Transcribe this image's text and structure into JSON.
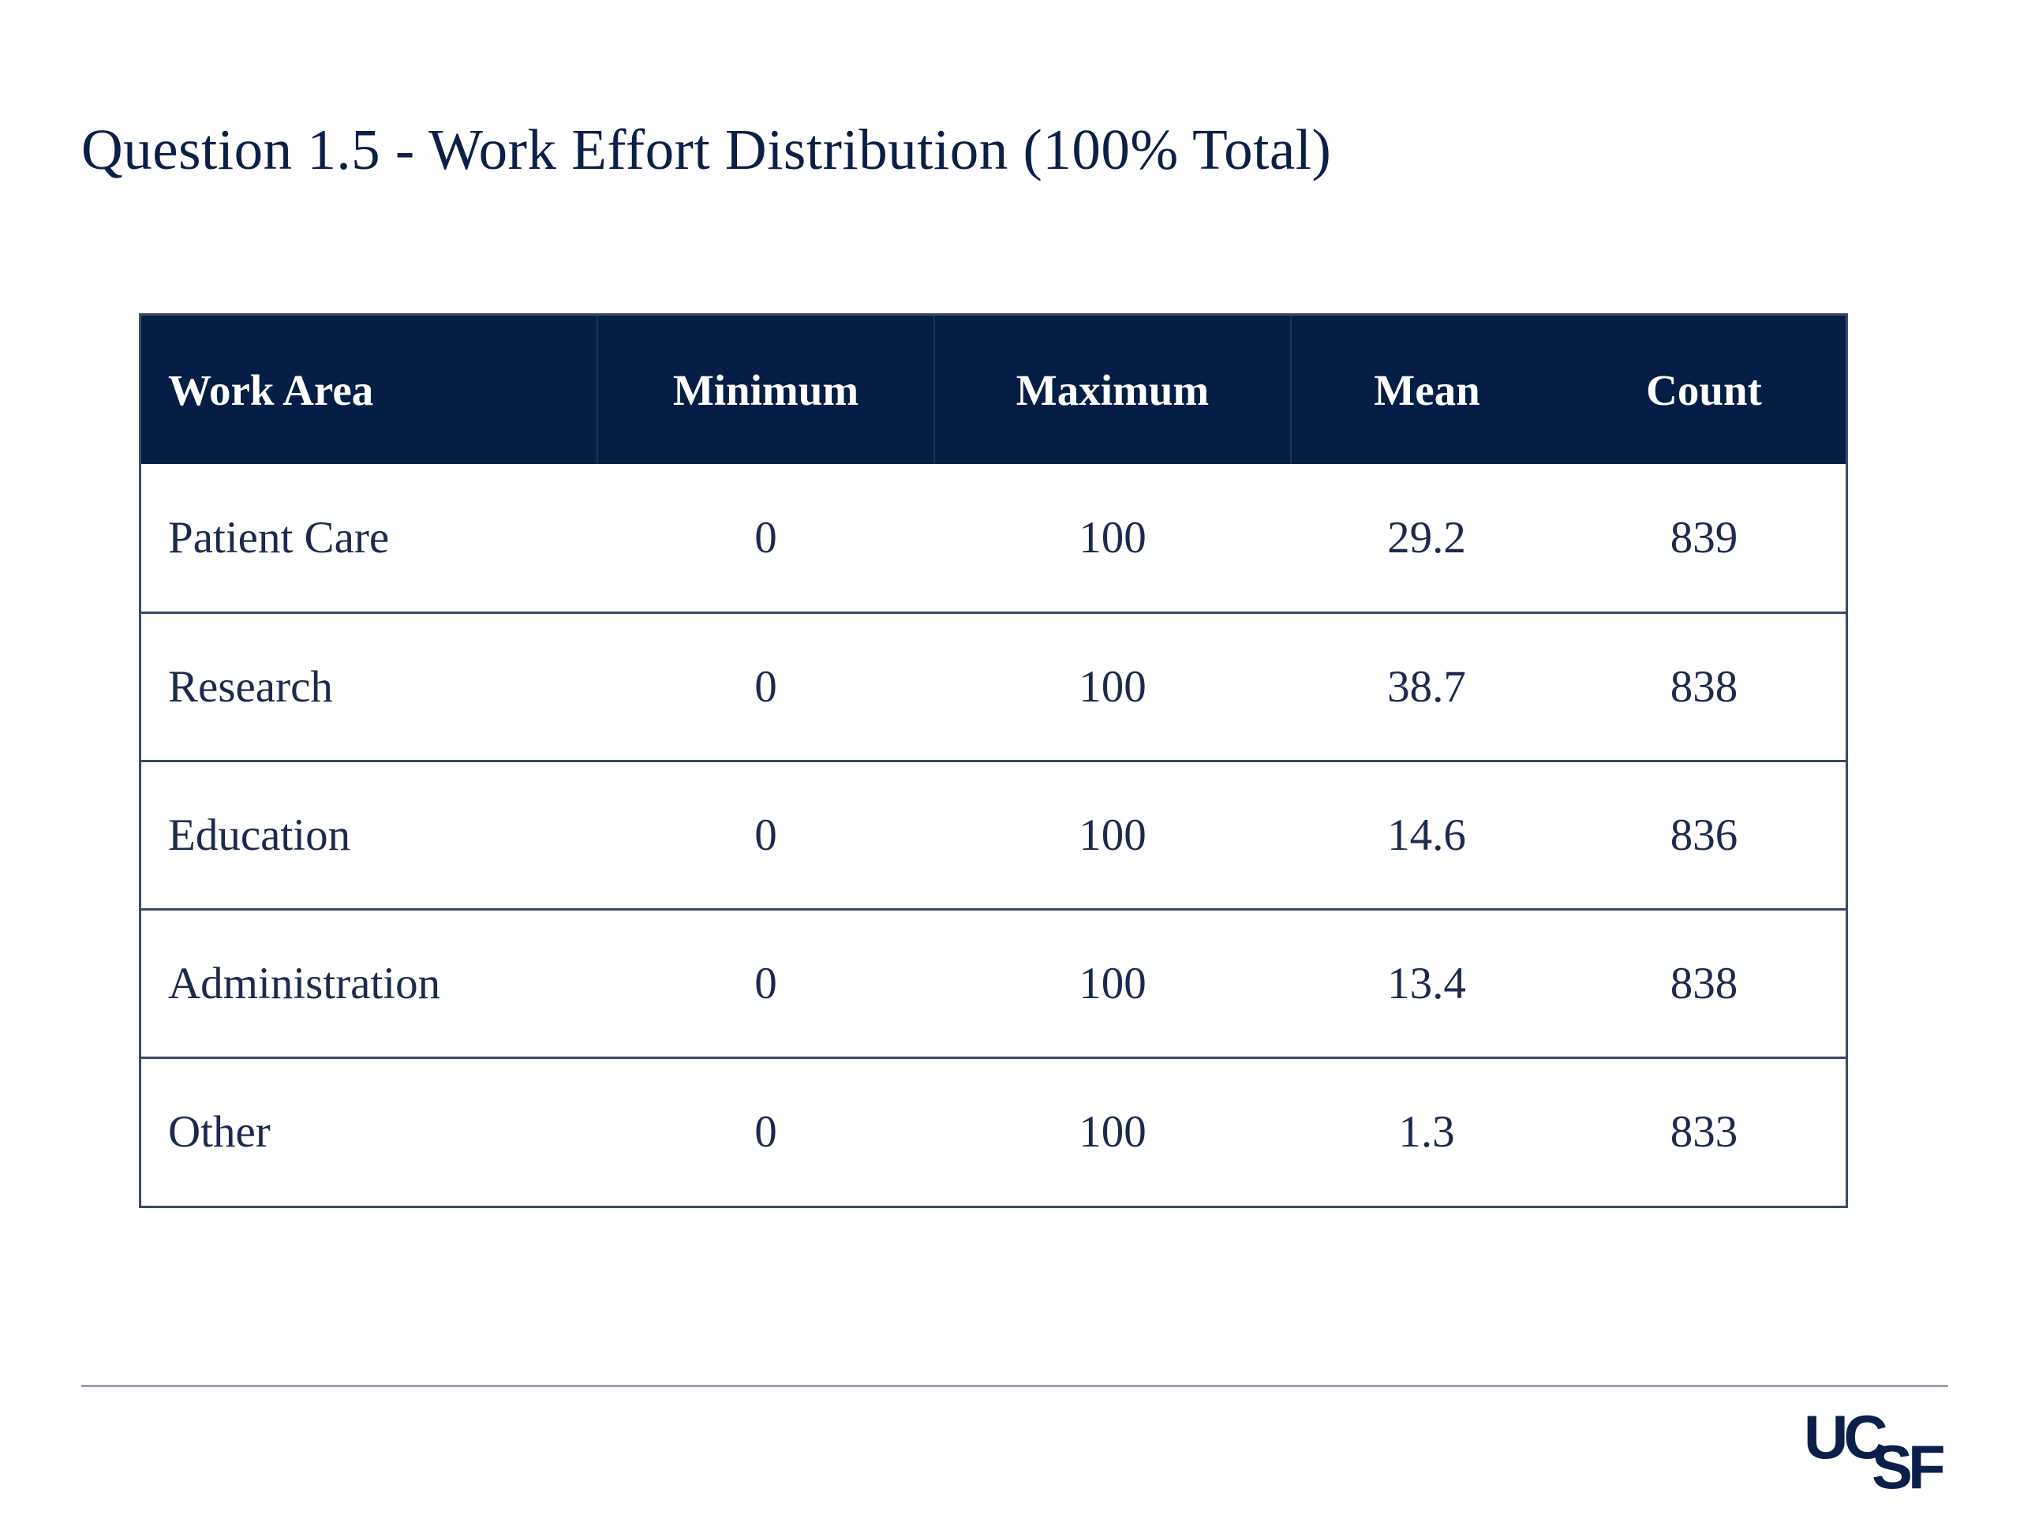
{
  "slide": {
    "title": "Question 1.5 - Work Effort Distribution (100% Total)"
  },
  "table": {
    "headers": [
      "Work Area",
      "Minimum",
      "Maximum",
      "Mean",
      "Count"
    ],
    "rows": [
      [
        "Patient Care",
        "0",
        "100",
        "29.2",
        "839"
      ],
      [
        "Research",
        "0",
        "100",
        "38.7",
        "838"
      ],
      [
        "Education",
        "0",
        "100",
        "14.6",
        "836"
      ],
      [
        "Administration",
        "0",
        "100",
        "13.4",
        "838"
      ],
      [
        "Other",
        "0",
        "100",
        "1.3",
        "833"
      ]
    ]
  },
  "logo": {
    "text": "UCSF",
    "color": "#0b1f48"
  },
  "colors": {
    "header_background": "#061e45",
    "text": "#1c2a4f",
    "border": "#3b4a6b"
  }
}
